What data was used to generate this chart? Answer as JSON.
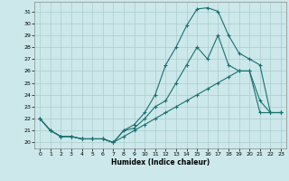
{
  "title": "",
  "xlabel": "Humidex (Indice chaleur)",
  "bg_color": "#cce8ea",
  "grid_color": "#aacccc",
  "line_color": "#1a7070",
  "xlim": [
    -0.5,
    23.5
  ],
  "ylim": [
    19.5,
    31.8
  ],
  "xticks": [
    0,
    1,
    2,
    3,
    4,
    5,
    6,
    7,
    8,
    9,
    10,
    11,
    12,
    13,
    14,
    15,
    16,
    17,
    18,
    19,
    20,
    21,
    22,
    23
  ],
  "yticks": [
    20,
    21,
    22,
    23,
    24,
    25,
    26,
    27,
    28,
    29,
    30,
    31
  ],
  "curve_peak_x": [
    0,
    1,
    2,
    3,
    4,
    5,
    6,
    7,
    8,
    9,
    10,
    11,
    12,
    13,
    14,
    15,
    16,
    17,
    18,
    19,
    20,
    21,
    22,
    23
  ],
  "curve_peak_y": [
    22,
    21,
    20.5,
    20.5,
    20.3,
    20.3,
    20.3,
    20.0,
    21.0,
    21.5,
    22.5,
    24.0,
    26.5,
    28.0,
    29.8,
    31.2,
    31.3,
    31.0,
    29.0,
    27.5,
    27.0,
    26.5,
    22.5,
    22.5
  ],
  "curve_mid_x": [
    0,
    1,
    2,
    3,
    4,
    5,
    6,
    7,
    8,
    9,
    10,
    11,
    12,
    13,
    14,
    15,
    16,
    17,
    18,
    19,
    20,
    21,
    22,
    23
  ],
  "curve_mid_y": [
    22,
    21,
    20.5,
    20.5,
    20.3,
    20.3,
    20.3,
    20.0,
    21.0,
    21.2,
    22.0,
    23.0,
    23.5,
    25.0,
    26.5,
    28.0,
    27.0,
    29.0,
    26.5,
    26.0,
    26.0,
    23.5,
    22.5,
    22.5
  ],
  "curve_flat_x": [
    0,
    1,
    2,
    3,
    4,
    5,
    6,
    7,
    8,
    9,
    10,
    11,
    12,
    13,
    14,
    15,
    16,
    17,
    18,
    19,
    20,
    21,
    22,
    23
  ],
  "curve_flat_y": [
    22,
    21,
    20.5,
    20.5,
    20.3,
    20.3,
    20.3,
    20.0,
    20.5,
    21.0,
    21.5,
    22.0,
    22.5,
    23.0,
    23.5,
    24.0,
    24.5,
    25.0,
    25.5,
    26.0,
    26.0,
    22.5,
    22.5,
    22.5
  ]
}
